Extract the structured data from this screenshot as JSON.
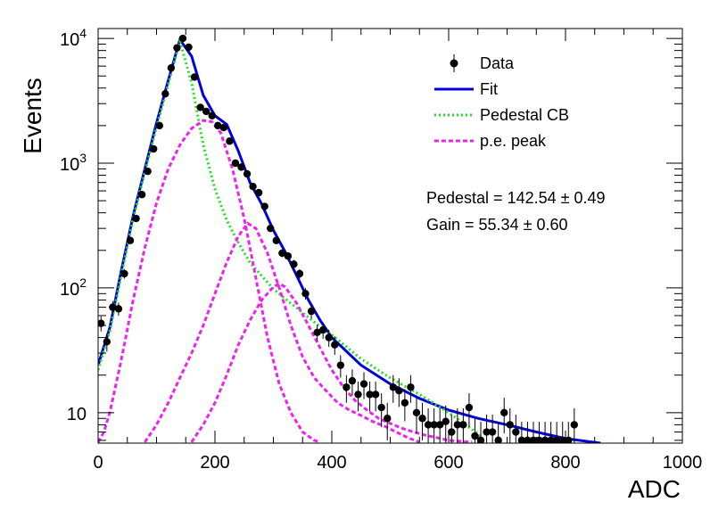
{
  "chart_data": {
    "type": "scatter",
    "xlabel": "ADC",
    "ylabel": "Events",
    "xlim": [
      0,
      1000
    ],
    "ylim": [
      5.7,
      12000
    ],
    "yscale": "log",
    "grid": false,
    "legend_position": "top-right",
    "x_ticks": [
      "0",
      "200",
      "400",
      "600",
      "800",
      "1000"
    ],
    "y_ticks": [
      {
        "base": "10",
        "exp": ""
      },
      {
        "base": "10",
        "exp": "2"
      },
      {
        "base": "10",
        "exp": "3"
      },
      {
        "base": "10",
        "exp": "4"
      }
    ],
    "legend": [
      {
        "name": "Data",
        "style": "marker"
      },
      {
        "name": "Fit",
        "style": "solid"
      },
      {
        "name": "Pedestal CB",
        "style": "dotted"
      },
      {
        "name": "p.e. peak",
        "style": "dashed"
      }
    ],
    "annotations": {
      "pedestal": "Pedestal = 142.54 ± 0.49",
      "gain": "Gain = 55.34 ± 0.60"
    },
    "series": [
      {
        "name": "Data",
        "color": "#000000",
        "x": [
          5,
          15,
          25,
          35,
          45,
          55,
          65,
          75,
          85,
          95,
          105,
          115,
          125,
          135,
          145,
          155,
          165,
          175,
          185,
          195,
          205,
          215,
          225,
          235,
          245,
          255,
          265,
          275,
          285,
          295,
          305,
          315,
          325,
          335,
          345,
          355,
          365,
          375,
          385,
          395,
          405,
          415,
          425,
          435,
          445,
          455,
          465,
          475,
          485,
          495,
          505,
          515,
          525,
          535,
          545,
          555,
          565,
          575,
          585,
          595,
          605,
          615,
          625,
          635,
          645,
          655,
          665,
          675,
          685,
          695,
          705,
          715,
          725,
          735,
          745,
          755,
          765,
          775,
          785,
          795,
          805,
          815
        ],
        "y": [
          52,
          37,
          70,
          68,
          130,
          240,
          360,
          560,
          860,
          1300,
          2000,
          3600,
          5800,
          8400,
          10000,
          8500,
          4900,
          2800,
          2600,
          2400,
          2000,
          1930,
          1500,
          1000,
          930,
          820,
          650,
          580,
          450,
          300,
          240,
          190,
          180,
          155,
          130,
          90,
          65,
          44,
          46,
          40,
          35,
          24,
          16,
          18,
          14,
          17,
          14,
          14,
          11,
          9,
          16,
          15,
          12,
          16,
          10,
          9,
          8,
          8,
          8,
          8.5,
          7,
          8,
          8,
          11,
          6.5,
          6,
          7,
          7,
          6,
          10,
          8,
          7,
          6,
          6,
          6,
          6,
          6,
          6,
          6,
          6,
          6,
          8
        ]
      },
      {
        "name": "Fit",
        "color": "#0000dd",
        "x": [
          0,
          20,
          40,
          60,
          80,
          100,
          120,
          140,
          160,
          180,
          200,
          220,
          240,
          260,
          280,
          300,
          320,
          340,
          360,
          380,
          400,
          450,
          500,
          550,
          600,
          650,
          700,
          750,
          800,
          860
        ],
        "y": [
          24,
          48,
          140,
          380,
          900,
          2100,
          4600,
          9800,
          7200,
          3500,
          2400,
          2050,
          1250,
          700,
          470,
          290,
          195,
          125,
          80,
          55,
          40,
          24,
          17,
          13,
          10.5,
          9,
          8,
          7,
          6.2,
          5.7
        ]
      },
      {
        "name": "Pedestal CB",
        "color": "#22dd22",
        "x": [
          0,
          20,
          40,
          60,
          80,
          100,
          120,
          140,
          160,
          180,
          200,
          220,
          240,
          260,
          280,
          300,
          320,
          340,
          360,
          380,
          400,
          450,
          500,
          550,
          600,
          650,
          660
        ],
        "y": [
          22,
          45,
          130,
          360,
          850,
          1950,
          4300,
          9500,
          4400,
          1400,
          620,
          350,
          230,
          160,
          125,
          98,
          82,
          69,
          58,
          49,
          42,
          27,
          19,
          14,
          10,
          6.8,
          5.9
        ]
      },
      {
        "name": "p.e. peak 1",
        "color": "#ee22ee",
        "x": [
          0,
          10,
          20,
          40,
          60,
          80,
          100,
          120,
          140,
          160,
          180,
          195,
          210,
          230,
          250,
          270,
          290,
          310,
          330,
          350,
          370,
          380
        ],
        "y": [
          5.8,
          7,
          10,
          27,
          80,
          210,
          480,
          900,
          1400,
          1900,
          2200,
          2150,
          1750,
          900,
          360,
          120,
          40,
          17,
          10,
          7,
          6,
          5.8
        ]
      },
      {
        "name": "p.e. peak 2",
        "color": "#ee22ee",
        "x": [
          80,
          100,
          120,
          140,
          160,
          180,
          200,
          220,
          240,
          256,
          270,
          290,
          310,
          330,
          350,
          370,
          390,
          410,
          430,
          450,
          470,
          490,
          510,
          530,
          550
        ],
        "y": [
          5.8,
          8,
          12,
          19,
          30,
          50,
          90,
          160,
          260,
          330,
          300,
          190,
          100,
          50,
          28,
          19,
          15,
          12,
          10.5,
          9.5,
          8.5,
          7.8,
          7,
          6.3,
          5.8
        ]
      },
      {
        "name": "p.e. peak 3",
        "color": "#ee22ee",
        "x": [
          160,
          180,
          200,
          220,
          240,
          260,
          280,
          300,
          310,
          320,
          340,
          360,
          380,
          400,
          420,
          440,
          460,
          480,
          500,
          520,
          540,
          560,
          580,
          600,
          620,
          640
        ],
        "y": [
          5.8,
          8,
          12,
          20,
          35,
          55,
          80,
          102,
          108,
          102,
          75,
          50,
          33,
          22,
          16,
          12.5,
          10.5,
          9,
          8.2,
          7.5,
          7,
          6.6,
          6.3,
          6,
          5.9,
          5.8
        ]
      }
    ]
  }
}
